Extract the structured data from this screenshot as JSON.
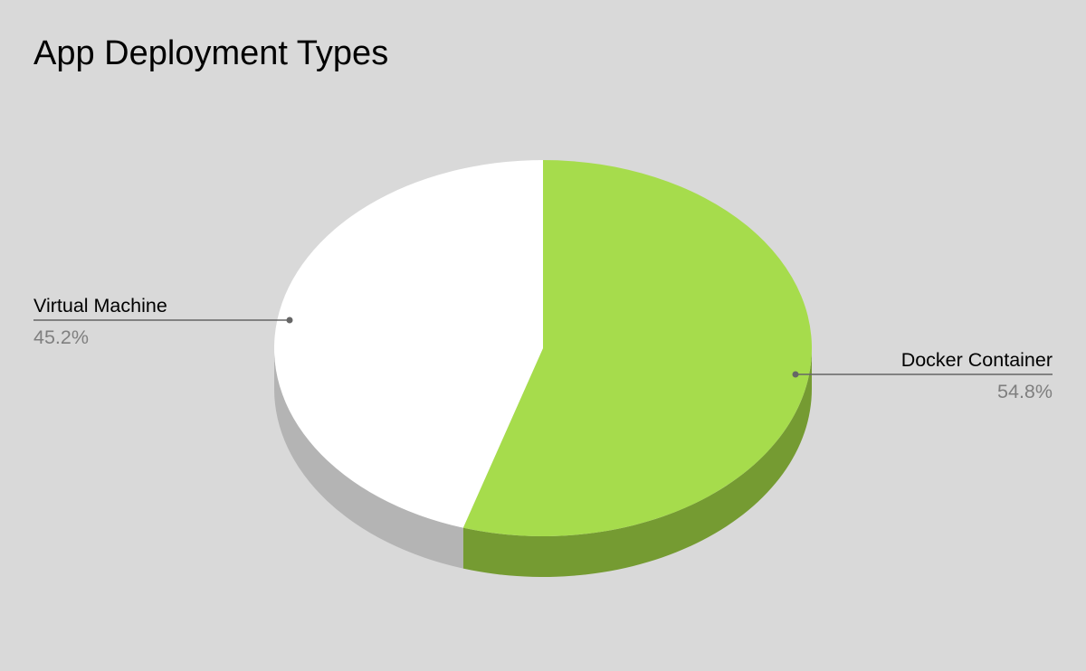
{
  "chart_data": {
    "type": "pie",
    "title": "App Deployment Types",
    "three_d": true,
    "legend": "none",
    "slices": [
      {
        "label": "Docker Container",
        "value": 54.8,
        "percent_label": "54.8%",
        "color": "#a6dc4c",
        "side_color": "#759b32"
      },
      {
        "label": "Virtual Machine",
        "value": 45.2,
        "percent_label": "45.2%",
        "color": "#ffffff",
        "side_color": "#b4b4b4"
      }
    ]
  }
}
